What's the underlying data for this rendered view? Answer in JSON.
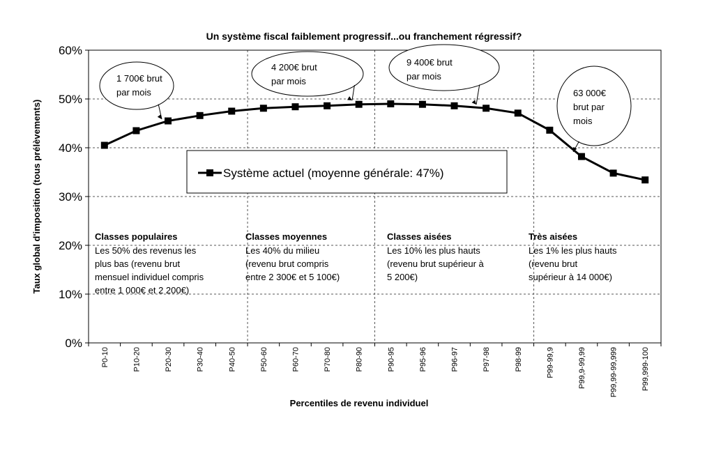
{
  "chart_data": {
    "type": "line",
    "title": "Un système fiscal faiblement progressif...ou franchement régressif?",
    "xlabel": "Percentiles de revenu individuel",
    "ylabel": "Taux global d'imposition (tous prélèvements)",
    "ylim": [
      0,
      60
    ],
    "ytick_labels": [
      "0%",
      "10%",
      "20%",
      "30%",
      "40%",
      "50%",
      "60%"
    ],
    "categories": [
      "P0-10",
      "P10-20",
      "P20-30",
      "P30-40",
      "P40-50",
      "P50-60",
      "P60-70",
      "P70-80",
      "P80-90",
      "P90-95",
      "P95-96",
      "P96-97",
      "P97-98",
      "P98-99",
      "P99-99,9",
      "P99,9-99,99",
      "P99,99-99,999",
      "P99,999-100"
    ],
    "series": [
      {
        "name": "Système actuel (moyenne générale: 47%)",
        "values": [
          40.5,
          43.5,
          45.5,
          46.6,
          47.5,
          48.1,
          48.4,
          48.6,
          48.9,
          49.0,
          48.9,
          48.6,
          48.1,
          47.1,
          43.6,
          38.2,
          34.8,
          33.4
        ]
      }
    ],
    "grid": "horizontal dashed",
    "legend_position": "center",
    "annotations": [
      {
        "lines": [
          "1 700€ brut",
          "par mois"
        ],
        "target_index": 2
      },
      {
        "lines": [
          "4 200€ brut",
          "par mois"
        ],
        "target_index": 8
      },
      {
        "lines": [
          "9 400€ brut",
          "par mois"
        ],
        "target_index": 12
      },
      {
        "lines": [
          "63 000€",
          "brut par",
          "mois"
        ],
        "target_index": 15
      }
    ],
    "regions": [
      {
        "title": "Classes populaires",
        "lines": [
          "Les 50% des revenus les",
          "plus bas (revenu brut",
          "mensuel individuel compris",
          "entre 1 000€ et 2 200€)"
        ]
      },
      {
        "title": "Classes moyennes",
        "lines": [
          "Les 40% du milieu",
          "(revenu brut compris",
          "entre 2 300€ et 5 100€)"
        ]
      },
      {
        "title": "Classes aisées",
        "lines": [
          "Les 10% les plus hauts",
          "(revenu brut supérieur à",
          "5 200€)"
        ]
      },
      {
        "title": "Très aisées",
        "lines": [
          "Les 1% les plus hauts",
          "(revenu brut",
          "supérieur à 14 000€)"
        ]
      }
    ]
  }
}
